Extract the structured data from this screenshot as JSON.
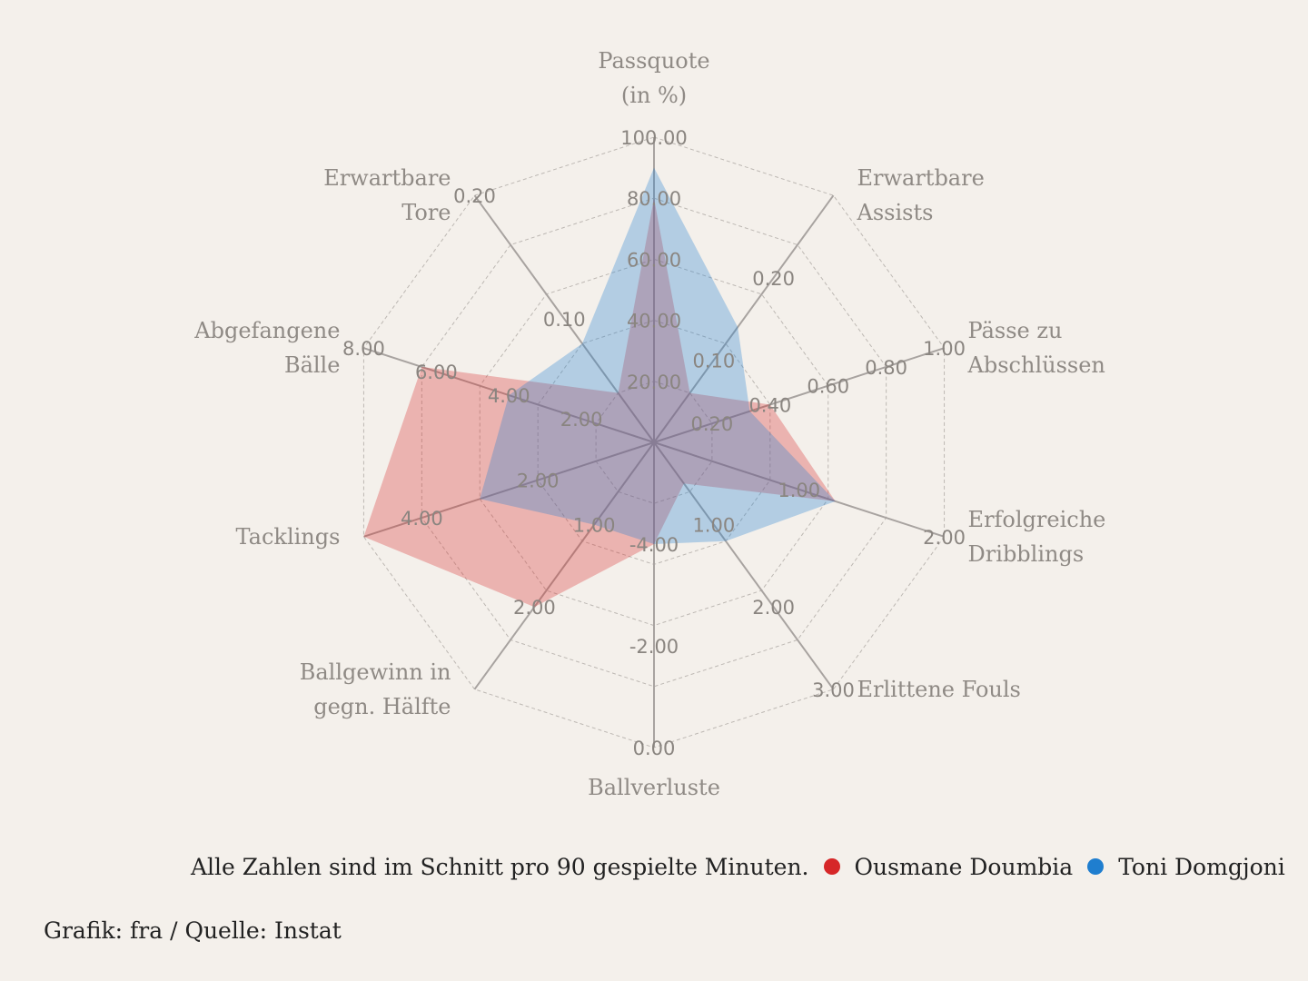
{
  "chart_data": {
    "type": "radar",
    "axes": [
      {
        "label_lines": [
          "Passquote",
          "(in %)"
        ],
        "ticks": [
          "20.00",
          "40.00",
          "60.00",
          "80.00",
          "100.00"
        ],
        "range": [
          0,
          100
        ]
      },
      {
        "label_lines": [
          "Erwartbare",
          "Assists"
        ],
        "ticks": [
          "0.10",
          "0.20"
        ],
        "range": [
          0,
          0.3
        ]
      },
      {
        "label_lines": [
          "Pässe zu",
          "Abschlüssen"
        ],
        "ticks": [
          "0.20",
          "0.40",
          "0.60",
          "0.80",
          "1.00"
        ],
        "range": [
          0,
          1.0
        ]
      },
      {
        "label_lines": [
          "Erfolgreiche",
          "Dribblings"
        ],
        "ticks": [
          "1.00",
          "2.00"
        ],
        "range": [
          0,
          2.0
        ]
      },
      {
        "label_lines": [
          "Erlittene Fouls"
        ],
        "ticks": [
          "1.00",
          "2.00",
          "3.00"
        ],
        "range": [
          0,
          3.0
        ]
      },
      {
        "label_lines": [
          "Ballverluste"
        ],
        "ticks": [
          "-4.00",
          "-2.00",
          "0.00"
        ],
        "range": [
          -6,
          0
        ]
      },
      {
        "label_lines": [
          "Ballgewinn in",
          "gegn. Hälfte"
        ],
        "ticks": [
          "1.00",
          "2.00"
        ],
        "range": [
          0,
          3.0
        ]
      },
      {
        "label_lines": [
          "Tacklings"
        ],
        "ticks": [
          "2.00",
          "4.00"
        ],
        "range": [
          0,
          5.0
        ]
      },
      {
        "label_lines": [
          "Abgefangene",
          "Bälle"
        ],
        "ticks": [
          "2.00",
          "4.00",
          "6.00",
          "8.00"
        ],
        "range": [
          0,
          8.0
        ]
      },
      {
        "label_lines": [
          "Erwartbare",
          "Tore"
        ],
        "ticks": [
          "0.10",
          "0.20"
        ],
        "range": [
          0,
          0.2
        ]
      }
    ],
    "series": [
      {
        "name": "Ousmane Doumbia",
        "color": "#d62728",
        "values": [
          80,
          0.06,
          0.4,
          1.25,
          0.5,
          -4.0,
          2.0,
          5.0,
          6.4,
          0.04
        ]
      },
      {
        "name": "Toni Domgjoni",
        "color": "#1f7ecf",
        "values": [
          90,
          0.14,
          0.33,
          1.25,
          1.2,
          -4.0,
          1.0,
          3.0,
          4.0,
          0.08
        ]
      }
    ]
  },
  "legend": {
    "note": "Alle Zahlen sind im Schnitt pro 90 gespielte Minuten.",
    "items": [
      {
        "name": "Ousmane Doumbia",
        "color": "#d62728"
      },
      {
        "name": "Toni Domgjoni",
        "color": "#1f7ecf"
      }
    ]
  },
  "credit": "Grafik: fra / Quelle: Instat"
}
